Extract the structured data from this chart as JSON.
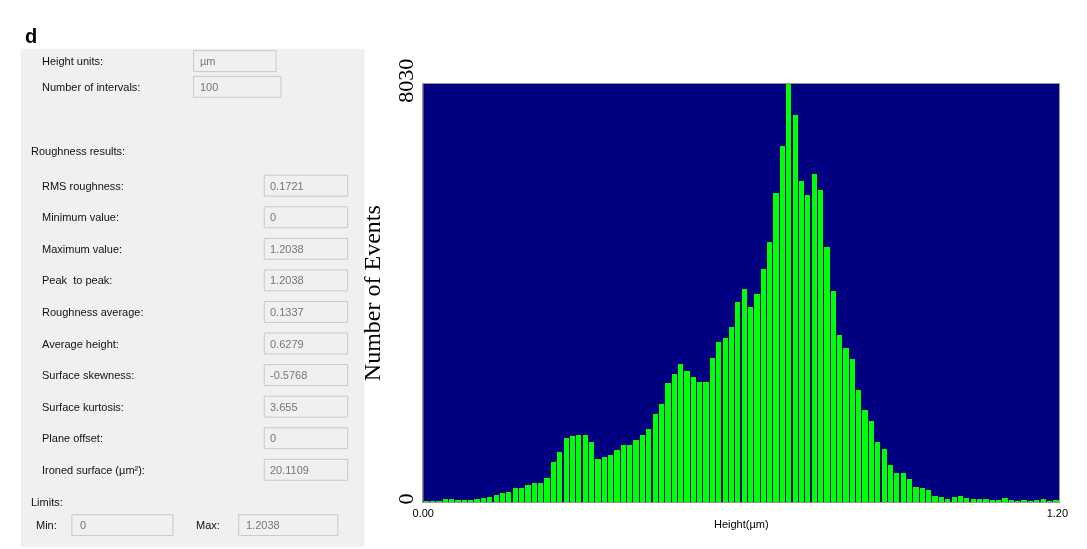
{
  "chart_data": [
    {
      "type": "other",
      "title": "d",
      "annotations": [
        "Height units:",
        "µm",
        "Number of intervals:",
        "100",
        "Roughness results:",
        "RMS roughness:",
        "0.1721",
        "Minimum value:",
        "0",
        "Maximum value:",
        "1.2038",
        "Peak  to peak:",
        "1.2038",
        "Roughness average:",
        "0.1337",
        "Average height:",
        "0.6279",
        "Surface skewness:",
        "-0.5768",
        "Surface kurtosis:",
        "3.655",
        "Plane offset:",
        "0",
        "Ironed surface (µm²):",
        "20.1109",
        "Limits:",
        "Min:",
        "0",
        "Max:",
        "1.2038"
      ]
    },
    {
      "type": "histogram",
      "xlabel": "Height(µm)",
      "ylabel": "Number of Events",
      "color": "#00ff00",
      "bins": [
        0,
        0.012038,
        0.024076,
        0.036114,
        0.048152,
        0.06019,
        0.072228,
        0.084266,
        0.096304,
        0.108342,
        0.12038,
        0.132418,
        0.144456,
        0.156494,
        0.168532,
        0.18057,
        0.192608,
        0.204646,
        0.216684,
        0.228722,
        0.24076,
        0.252798,
        0.264836,
        0.276874,
        0.288912,
        0.30095,
        0.312988,
        0.325026,
        0.337064,
        0.349102,
        0.36114,
        0.373178,
        0.385216,
        0.397254,
        0.409292,
        0.42133,
        0.433368,
        0.445406,
        0.457444,
        0.469482,
        0.48152,
        0.493558,
        0.505596,
        0.517634,
        0.529672,
        0.54171,
        0.553748,
        0.565786,
        0.577824,
        0.589862,
        0.6019,
        0.613938,
        0.625976,
        0.638014,
        0.650052,
        0.66209,
        0.674128,
        0.686166,
        0.698204,
        0.710242,
        0.72228,
        0.734318,
        0.746356,
        0.758394,
        0.770432,
        0.78247,
        0.794508,
        0.806546,
        0.818584,
        0.830622,
        0.84266,
        0.854698,
        0.866736,
        0.878774,
        0.890812,
        0.90285,
        0.914888,
        0.926926,
        0.938964,
        0.951002,
        0.96304,
        0.975078,
        0.987116,
        0.999154,
        1.011192,
        1.02323,
        1.035268,
        1.047306,
        1.059344,
        1.071382,
        1.08342,
        1.095458,
        1.107496,
        1.119534,
        1.131572,
        1.14361,
        1.155648,
        1.167686,
        1.179724,
        1.191762,
        1.2038
      ],
      "values": [
        10,
        10,
        10,
        60,
        60,
        40,
        40,
        50,
        70,
        90,
        100,
        150,
        180,
        200,
        280,
        280,
        330,
        380,
        380,
        470,
        770,
        970,
        1240,
        1270,
        1290,
        1290,
        1150,
        830,
        880,
        910,
        1010,
        1100,
        1110,
        1190,
        1290,
        1410,
        1690,
        1880,
        2290,
        2460,
        2660,
        2520,
        2400,
        2310,
        2310,
        2770,
        3070,
        3150,
        3370,
        3840,
        4090,
        3750,
        3990,
        4470,
        4990,
        5940,
        6840,
        8030,
        7440,
        6170,
        5890,
        6300,
        6000,
        4900,
        4050,
        3220,
        2960,
        2750,
        2160,
        1780,
        1560,
        1160,
        1020,
        710,
        560,
        560,
        440,
        300,
        270,
        230,
        120,
        110,
        70,
        100,
        120,
        90,
        60,
        70,
        60,
        40,
        50,
        90,
        50,
        10,
        40,
        20,
        50,
        70,
        20,
        40
      ],
      "xlim": [
        0,
        1.2038
      ],
      "ylim": [
        0,
        8030
      ],
      "xticks": [
        {
          "value": 0,
          "label": "0.00"
        },
        {
          "value": 1.2,
          "label": "1.20"
        }
      ],
      "yticks": [
        0,
        8030
      ]
    }
  ]
}
